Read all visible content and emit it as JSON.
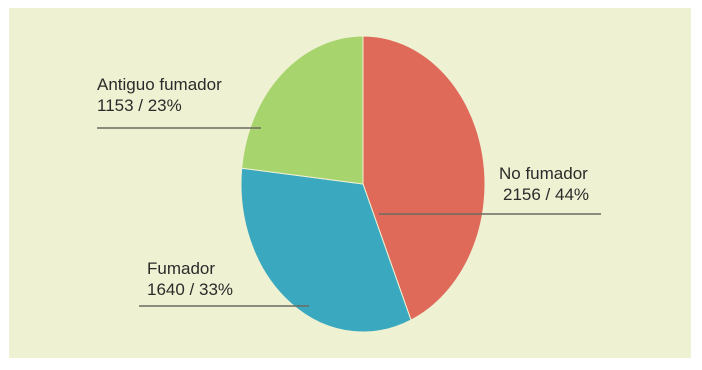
{
  "chart_data": {
    "type": "pie",
    "slices": [
      {
        "name": "No fumador",
        "value": 2156,
        "percent": "44%",
        "label": "2156 / 44%",
        "color": "#e06a5a"
      },
      {
        "name": "Fumador",
        "value": 1640,
        "percent": "33%",
        "label": "1640 / 33%",
        "color": "#3aa9bf"
      },
      {
        "name": "Antiguo fumador",
        "value": 1153,
        "percent": "23%",
        "label": "1153 / 23%",
        "color": "#a8d46e"
      }
    ],
    "start": "top",
    "direction": "clockwise"
  }
}
